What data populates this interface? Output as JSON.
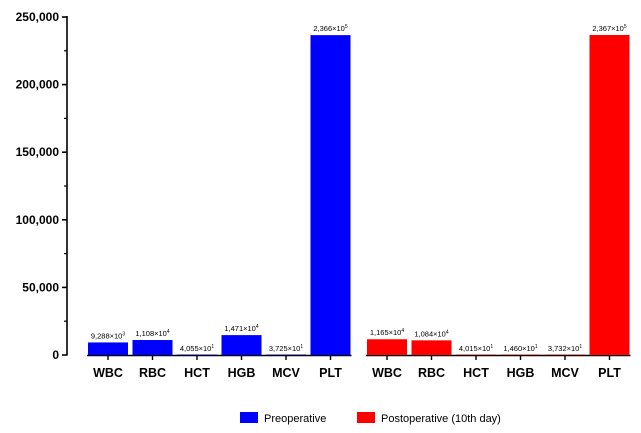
{
  "chart_data": {
    "type": "bar",
    "ylim": [
      0,
      250000
    ],
    "yticks": [
      0,
      50000,
      100000,
      150000,
      200000,
      250000
    ],
    "ytick_labels": [
      "0",
      "50,000",
      "100,000",
      "150,000",
      "200,000",
      "250,000"
    ],
    "grid": false,
    "legend_position": "bottom",
    "groups": [
      {
        "name": "Preoperative",
        "color": "#0000ff",
        "categories": [
          "WBC",
          "RBC",
          "HCT",
          "HGB",
          "MCV",
          "PLT"
        ],
        "values": [
          9288,
          11080,
          40.55,
          14710,
          37.25,
          236600
        ],
        "labels": [
          {
            "mantissa": "9,288×10",
            "exponent": "3"
          },
          {
            "mantissa": "1,108×10",
            "exponent": "4"
          },
          {
            "mantissa": "4,055×10",
            "exponent": "1"
          },
          {
            "mantissa": "1,471×10",
            "exponent": "4"
          },
          {
            "mantissa": "3,725×10",
            "exponent": "1"
          },
          {
            "mantissa": "2,366×10",
            "exponent": "5"
          }
        ]
      },
      {
        "name": "Postoperative (10th day)",
        "color": "#ff0000",
        "categories": [
          "WBC",
          "RBC",
          "HCT",
          "HGB",
          "MCV",
          "PLT"
        ],
        "values": [
          11650,
          10840,
          40.15,
          14.6,
          37.32,
          236700
        ],
        "labels": [
          {
            "mantissa": "1,165×10",
            "exponent": "4"
          },
          {
            "mantissa": "1,084×10",
            "exponent": "4"
          },
          {
            "mantissa": "4,015×10",
            "exponent": "1"
          },
          {
            "mantissa": "1,460×10",
            "exponent": "1"
          },
          {
            "mantissa": "3,732×10",
            "exponent": "1"
          },
          {
            "mantissa": "2,367×10",
            "exponent": "5"
          }
        ]
      }
    ]
  }
}
